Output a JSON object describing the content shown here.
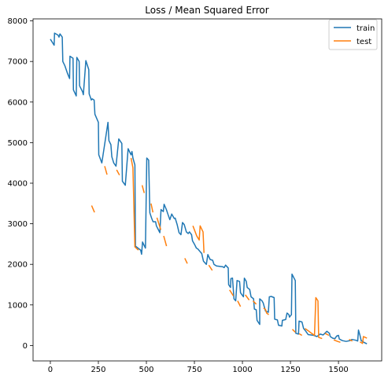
{
  "chart_data": {
    "type": "line",
    "title": "Loss / Mean Squared Error",
    "xlabel": "",
    "ylabel": "",
    "xlim": [
      -90,
      1725
    ],
    "ylim": [
      -380,
      8050
    ],
    "x_ticks": [
      0,
      250,
      500,
      750,
      1000,
      1250,
      1500
    ],
    "y_ticks": [
      0,
      1000,
      2000,
      3000,
      4000,
      5000,
      6000,
      7000,
      8000
    ],
    "grid": false,
    "legend_position": "top-right",
    "series": [
      {
        "name": "train",
        "color": "#1f77b4",
        "style": "solid",
        "points": [
          [
            0,
            7550
          ],
          [
            20,
            7400
          ],
          [
            22,
            7700
          ],
          [
            40,
            7650
          ],
          [
            45,
            7600
          ],
          [
            50,
            7680
          ],
          [
            62,
            7600
          ],
          [
            65,
            7000
          ],
          [
            75,
            6900
          ],
          [
            90,
            6700
          ],
          [
            100,
            6580
          ],
          [
            102,
            7130
          ],
          [
            118,
            7080
          ],
          [
            120,
            6300
          ],
          [
            135,
            6150
          ],
          [
            138,
            7100
          ],
          [
            150,
            7000
          ],
          [
            152,
            6400
          ],
          [
            168,
            6250
          ],
          [
            172,
            6180
          ],
          [
            185,
            7020
          ],
          [
            200,
            6800
          ],
          [
            202,
            6200
          ],
          [
            210,
            6100
          ],
          [
            213,
            6050
          ],
          [
            218,
            6080
          ],
          [
            228,
            6050
          ],
          [
            232,
            5700
          ],
          [
            250,
            5500
          ],
          [
            252,
            4700
          ],
          [
            268,
            4500
          ],
          [
            300,
            5500
          ],
          [
            305,
            5050
          ],
          [
            315,
            4950
          ],
          [
            320,
            4650
          ],
          [
            330,
            4500
          ],
          [
            342,
            4420
          ],
          [
            356,
            5090
          ],
          [
            372,
            4980
          ],
          [
            375,
            4050
          ],
          [
            390,
            3950
          ],
          [
            405,
            4850
          ],
          [
            420,
            4700
          ],
          [
            425,
            4780
          ],
          [
            430,
            4620
          ],
          [
            440,
            4450
          ],
          [
            443,
            2450
          ],
          [
            470,
            2350
          ],
          [
            475,
            2250
          ],
          [
            480,
            2550
          ],
          [
            495,
            2400
          ],
          [
            502,
            4620
          ],
          [
            512,
            4570
          ],
          [
            518,
            3270
          ],
          [
            528,
            3130
          ],
          [
            535,
            3050
          ],
          [
            548,
            3050
          ],
          [
            552,
            2950
          ],
          [
            570,
            2780
          ],
          [
            576,
            3350
          ],
          [
            588,
            3300
          ],
          [
            592,
            3480
          ],
          [
            604,
            3350
          ],
          [
            611,
            3250
          ],
          [
            622,
            3100
          ],
          [
            632,
            3240
          ],
          [
            645,
            3130
          ],
          [
            650,
            3140
          ],
          [
            660,
            2980
          ],
          [
            670,
            2780
          ],
          [
            680,
            2730
          ],
          [
            688,
            3030
          ],
          [
            697,
            2980
          ],
          [
            708,
            2800
          ],
          [
            718,
            2760
          ],
          [
            724,
            2800
          ],
          [
            735,
            2730
          ],
          [
            740,
            2580
          ],
          [
            752,
            2480
          ],
          [
            760,
            2400
          ],
          [
            768,
            2380
          ],
          [
            782,
            2300
          ],
          [
            788,
            2270
          ],
          [
            797,
            2080
          ],
          [
            812,
            2000
          ],
          [
            820,
            2240
          ],
          [
            832,
            2120
          ],
          [
            845,
            2100
          ],
          [
            852,
            2000
          ],
          [
            865,
            1960
          ],
          [
            898,
            1940
          ],
          [
            905,
            1920
          ],
          [
            912,
            1980
          ],
          [
            926,
            1910
          ],
          [
            928,
            1500
          ],
          [
            938,
            1430
          ],
          [
            940,
            1650
          ],
          [
            948,
            1660
          ],
          [
            956,
            1150
          ],
          [
            965,
            1100
          ],
          [
            972,
            1600
          ],
          [
            985,
            1580
          ],
          [
            990,
            1300
          ],
          [
            1005,
            1200
          ],
          [
            1010,
            1660
          ],
          [
            1020,
            1580
          ],
          [
            1025,
            1430
          ],
          [
            1038,
            1380
          ],
          [
            1045,
            1200
          ],
          [
            1058,
            1150
          ],
          [
            1062,
            900
          ],
          [
            1072,
            880
          ],
          [
            1076,
            620
          ],
          [
            1090,
            520
          ],
          [
            1090,
            1150
          ],
          [
            1102,
            1100
          ],
          [
            1108,
            1050
          ],
          [
            1120,
            850
          ],
          [
            1135,
            820
          ],
          [
            1140,
            1200
          ],
          [
            1150,
            1210
          ],
          [
            1165,
            1180
          ],
          [
            1168,
            650
          ],
          [
            1182,
            630
          ],
          [
            1188,
            500
          ],
          [
            1205,
            480
          ],
          [
            1208,
            620
          ],
          [
            1225,
            640
          ],
          [
            1232,
            800
          ],
          [
            1242,
            760
          ],
          [
            1245,
            700
          ],
          [
            1255,
            760
          ],
          [
            1258,
            1760
          ],
          [
            1275,
            1600
          ],
          [
            1278,
            300
          ],
          [
            1292,
            280
          ],
          [
            1295,
            600
          ],
          [
            1310,
            580
          ],
          [
            1318,
            420
          ],
          [
            1330,
            350
          ],
          [
            1342,
            270
          ],
          [
            1372,
            250
          ],
          [
            1388,
            220
          ],
          [
            1405,
            280
          ],
          [
            1420,
            260
          ],
          [
            1440,
            350
          ],
          [
            1453,
            300
          ],
          [
            1457,
            220
          ],
          [
            1470,
            180
          ],
          [
            1482,
            170
          ],
          [
            1490,
            230
          ],
          [
            1500,
            250
          ],
          [
            1504,
            160
          ],
          [
            1520,
            120
          ],
          [
            1540,
            100
          ],
          [
            1560,
            120
          ],
          [
            1570,
            150
          ],
          [
            1590,
            130
          ],
          [
            1600,
            110
          ],
          [
            1604,
            380
          ],
          [
            1612,
            250
          ],
          [
            1618,
            120
          ],
          [
            1632,
            80
          ],
          [
            1648,
            40
          ]
        ]
      },
      {
        "name": "test",
        "color": "#ff7f0e",
        "style": "solid",
        "segments": [
          [
            [
              215,
              3450
            ],
            [
              230,
              3280
            ]
          ],
          [
            [
              283,
              4420
            ],
            [
              295,
              4210
            ]
          ],
          [
            [
              345,
              4330
            ],
            [
              360,
              4200
            ]
          ],
          [
            [
              420,
              4620
            ],
            [
              430,
              4380
            ],
            [
              440,
              2430
            ],
            [
              458,
              2350
            ]
          ],
          [
            [
              478,
              3950
            ],
            [
              489,
              3760
            ]
          ],
          [
            [
              524,
              3500
            ],
            [
              534,
              3280
            ]
          ],
          [
            [
              555,
              3150
            ],
            [
              575,
              2850
            ]
          ],
          [
            [
              590,
              2700
            ],
            [
              605,
              2450
            ]
          ],
          [
            [
              700,
              2150
            ],
            [
              713,
              2020
            ]
          ],
          [
            [
              742,
              2950
            ],
            [
              762,
              2700
            ],
            [
              775,
              2600
            ],
            [
              780,
              2950
            ],
            [
              795,
              2800
            ],
            [
              800,
              2280
            ]
          ],
          [
            [
              825,
              1980
            ],
            [
              843,
              1850
            ]
          ],
          [
            [
              933,
              1370
            ],
            [
              953,
              1220
            ]
          ],
          [
            [
              975,
              1100
            ],
            [
              990,
              960
            ]
          ],
          [
            [
              1015,
              1250
            ],
            [
              1035,
              1120
            ]
          ],
          [
            [
              1055,
              1100
            ],
            [
              1072,
              1020
            ]
          ],
          [
            [
              1110,
              920
            ],
            [
              1120,
              890
            ],
            [
              1126,
              800
            ],
            [
              1137,
              760
            ]
          ],
          [
            [
              1260,
              400
            ],
            [
              1275,
              330
            ]
          ],
          [
            [
              1295,
              290
            ],
            [
              1310,
              250
            ]
          ],
          [
            [
              1325,
              420
            ],
            [
              1346,
              350
            ],
            [
              1360,
              300
            ],
            [
              1375,
              250
            ],
            [
              1382,
              1180
            ],
            [
              1393,
              1100
            ],
            [
              1397,
              200
            ],
            [
              1415,
              170
            ]
          ],
          [
            [
              1430,
              300
            ],
            [
              1450,
              250
            ]
          ],
          [
            [
              1475,
              140
            ],
            [
              1495,
              100
            ],
            [
              1510,
              80
            ]
          ],
          [
            [
              1555,
              150
            ],
            [
              1572,
              110
            ]
          ],
          [
            [
              1612,
              90
            ],
            [
              1625,
              50
            ],
            [
              1630,
              220
            ],
            [
              1648,
              180
            ]
          ]
        ]
      }
    ]
  }
}
